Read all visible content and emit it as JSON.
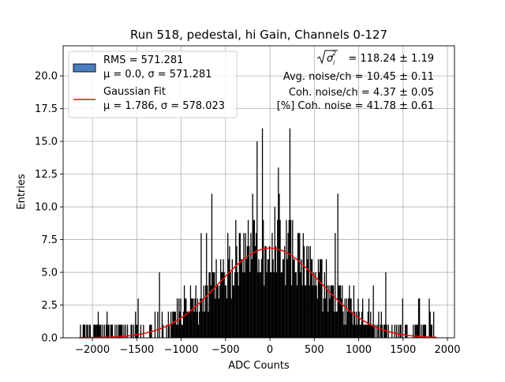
{
  "chart_data": {
    "type": "bar",
    "title": "Run 518, pedestal, hi Gain, Channels 0-127",
    "xlabel": "ADC Counts",
    "ylabel": "Entries",
    "xlim": [
      -2330,
      2080
    ],
    "ylim": [
      0,
      22.3
    ],
    "xticks": [
      -2000,
      -1500,
      -1000,
      -500,
      0,
      500,
      1000,
      1500,
      2000
    ],
    "xtick_labels": [
      "−2000",
      "−1500",
      "−1000",
      "−500",
      "0",
      "500",
      "1000",
      "1500",
      "2000"
    ],
    "yticks": [
      0,
      2.5,
      5,
      7.5,
      10,
      12.5,
      15,
      17.5,
      20
    ],
    "ytick_labels": [
      "0.0",
      "2.5",
      "5.0",
      "7.5",
      "10.0",
      "12.5",
      "15.0",
      "17.5",
      "20.0"
    ],
    "grid": true,
    "legend_position": "top-left",
    "histogram": {
      "bin_width": 10,
      "x_start": -2150,
      "x_end": 1880,
      "mean": 0.0,
      "sigma": 571.281,
      "legend_line1": "RMS = 571.281",
      "legend_line2": "μ = 0.0, σ = 571.281",
      "fill_color": "#000000",
      "legend_swatch_color": "#4a7fbf"
    },
    "gaussian_fit": {
      "mu": 1.786,
      "sigma": 578.023,
      "peak": 6.85,
      "legend_line1": "Gaussian Fit",
      "legend_line2": "μ = 1.786, σ = 578.023",
      "color": "#e8100c"
    },
    "annotations": {
      "sigma_text": "= 118.24 ± 1.19",
      "avg_noise": "Avg. noise/ch = 10.45 ± 0.11",
      "coh_noise": "Coh. noise/ch = 4.37 ± 0.05",
      "coh_noise_pct": "[%] Coh. noise = 41.78 ± 0.61"
    }
  }
}
